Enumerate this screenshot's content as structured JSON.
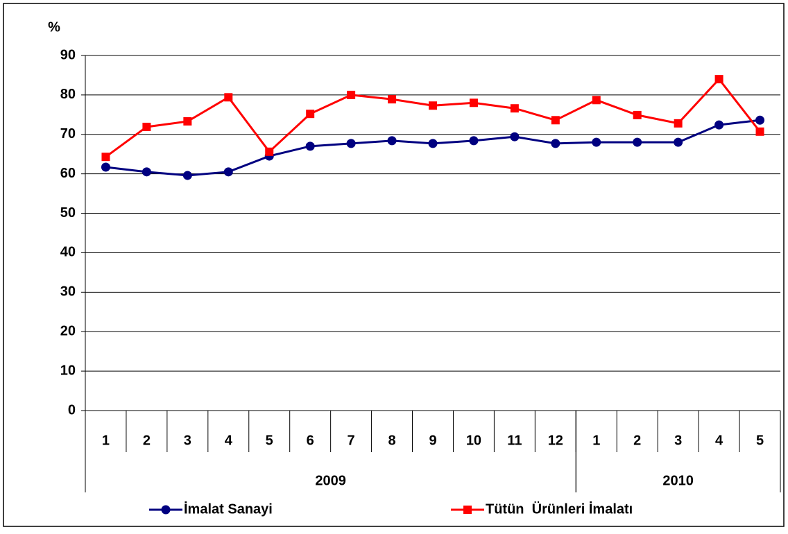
{
  "chart_data": {
    "type": "line",
    "y_label": "%",
    "category_groups": [
      {
        "label": "2009",
        "categories": [
          "1",
          "2",
          "3",
          "4",
          "5",
          "6",
          "7",
          "8",
          "9",
          "10",
          "11",
          "12"
        ]
      },
      {
        "label": "2010",
        "categories": [
          "1",
          "2",
          "3",
          "4",
          "5"
        ]
      }
    ],
    "series": [
      {
        "name": "İmalat Sanayi",
        "color": "#000080",
        "marker": "circle",
        "values": [
          61.7,
          60.5,
          59.6,
          60.5,
          64.5,
          67.0,
          67.7,
          68.4,
          67.7,
          68.4,
          69.4,
          67.7,
          68.0,
          68.0,
          68.0,
          72.4,
          73.6
        ]
      },
      {
        "name": "Tütün  Ürünleri İmalatı",
        "color": "#ff0000",
        "marker": "square",
        "values": [
          64.3,
          71.9,
          73.3,
          79.4,
          65.6,
          75.2,
          80.0,
          78.9,
          77.3,
          78.0,
          76.6,
          73.6,
          78.7,
          74.9,
          72.8,
          84.0,
          70.7
        ]
      }
    ],
    "ylim": [
      0,
      90
    ],
    "yticks": [
      0,
      10,
      20,
      30,
      40,
      50,
      60,
      70,
      80,
      90
    ],
    "grid": true,
    "legend": "bottom"
  }
}
